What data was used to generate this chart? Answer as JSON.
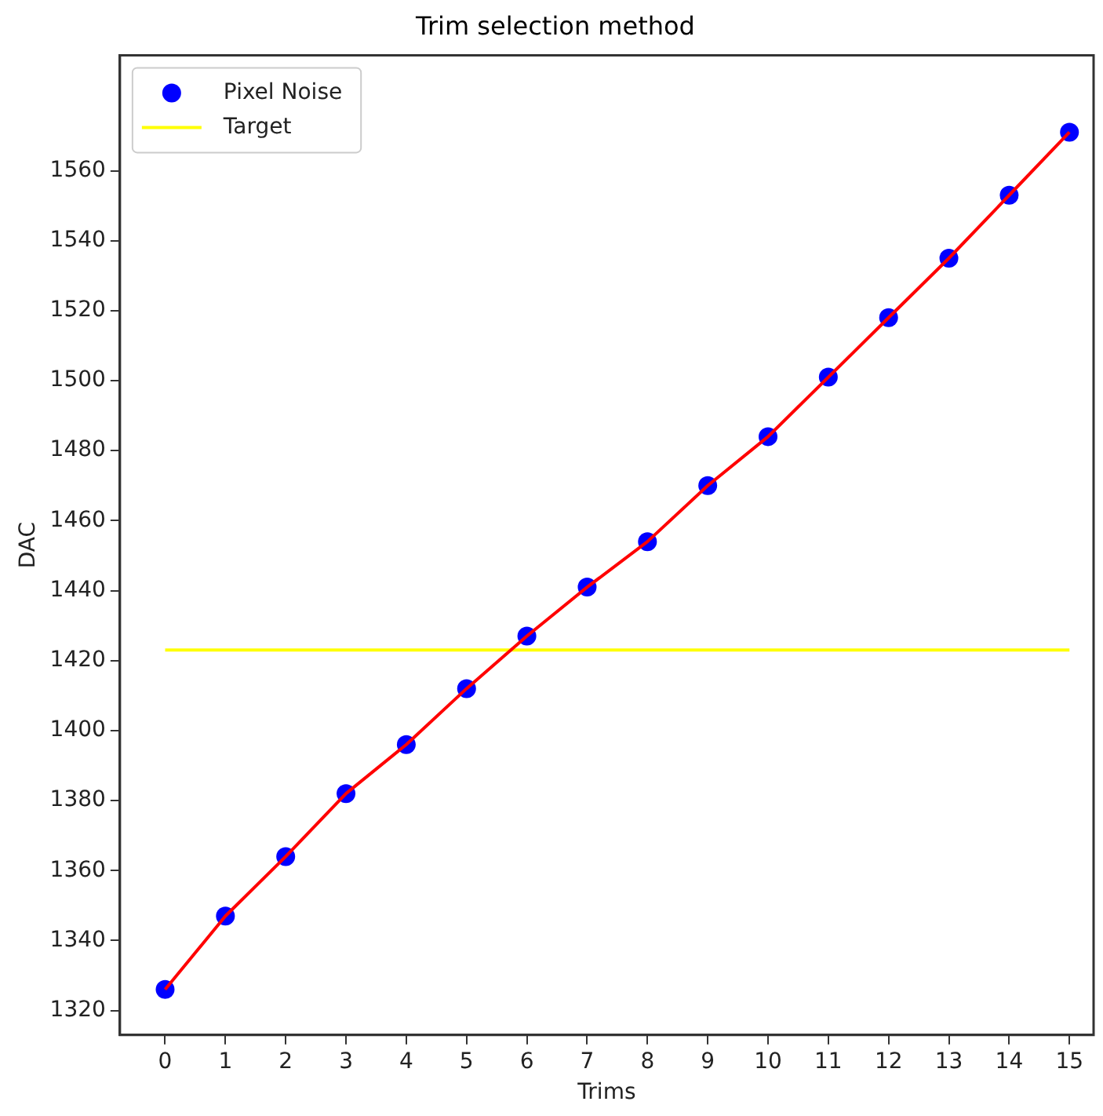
{
  "chart_data": {
    "type": "line",
    "title": "Trim selection method",
    "xlabel": "Trims",
    "ylabel": "DAC",
    "x": [
      0,
      1,
      2,
      3,
      4,
      5,
      6,
      7,
      8,
      9,
      10,
      11,
      12,
      13,
      14,
      15
    ],
    "series": [
      {
        "color": "#ff0000",
        "marker": "none",
        "values": [
          1326,
          1347,
          1364,
          1382,
          1396,
          1412,
          1427,
          1441,
          1454,
          1470,
          1484,
          1501,
          1518,
          1535,
          1553,
          1571
        ]
      },
      {
        "type": "scatter",
        "name": "Pixel Noise",
        "color": "#0000ff",
        "marker": "circle",
        "values": [
          1326,
          1347,
          1364,
          1382,
          1396,
          1412,
          1427,
          1441,
          1454,
          1470,
          1484,
          1501,
          1518,
          1535,
          1553,
          1571
        ]
      },
      {
        "type": "line",
        "name": "Target",
        "color": "#ffff00",
        "marker": "none",
        "x": [
          0,
          15
        ],
        "values": [
          1423,
          1423
        ]
      }
    ],
    "xlim": [
      -0.75,
      15.4
    ],
    "xticks": [
      0,
      1,
      2,
      3,
      4,
      5,
      6,
      7,
      8,
      9,
      10,
      11,
      12,
      13,
      14,
      15
    ],
    "ylim": [
      1313,
      1593
    ],
    "yticks": [
      1320,
      1340,
      1360,
      1380,
      1400,
      1420,
      1440,
      1460,
      1480,
      1500,
      1520,
      1540,
      1560
    ],
    "grid": false,
    "legend": "top left"
  }
}
